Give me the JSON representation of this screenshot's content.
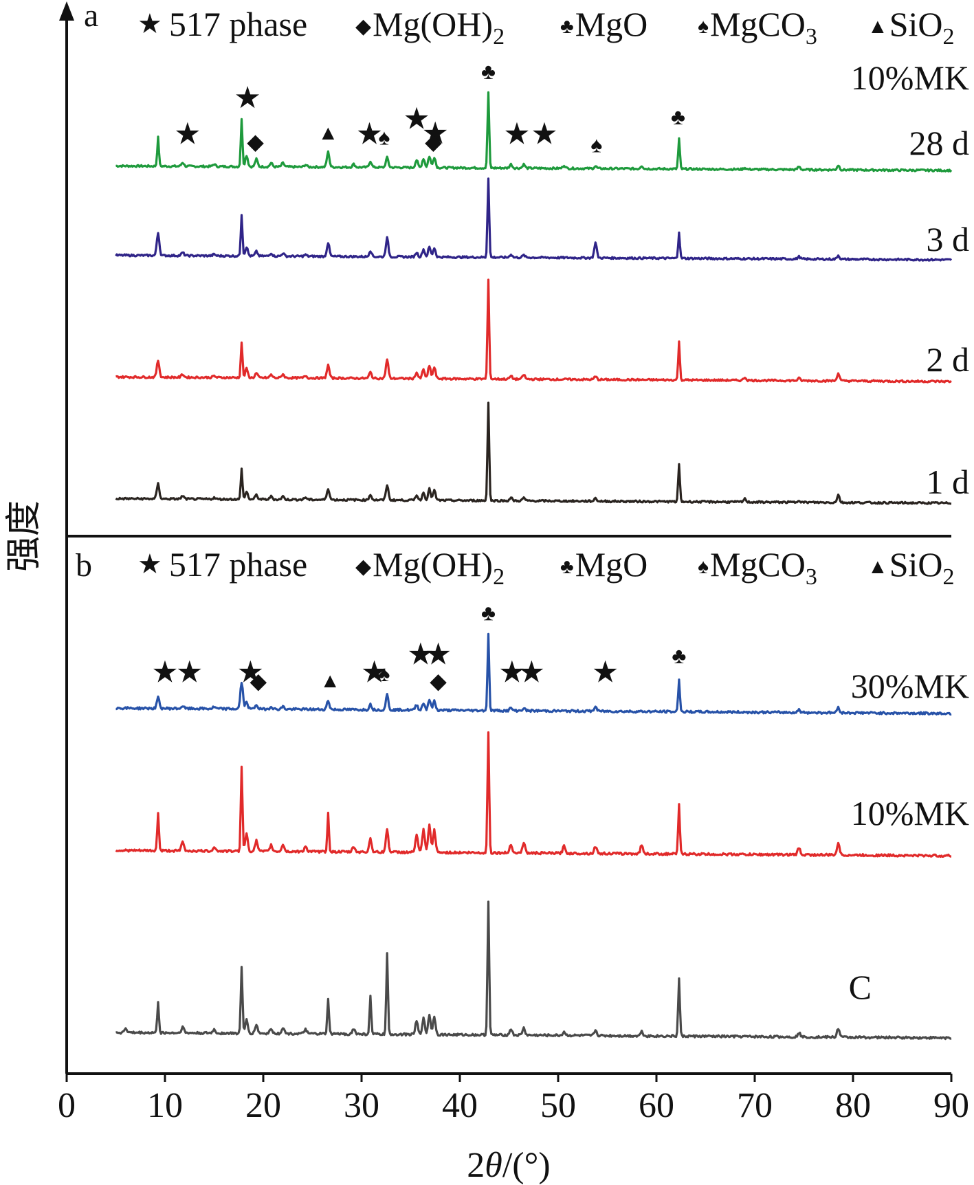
{
  "chart_data": {
    "type": "line",
    "x_axis": {
      "label_prefix": "2",
      "label_theta": "θ",
      "label_suffix": "/(°)",
      "min": 0,
      "max": 90,
      "ticks": [
        0,
        10,
        20,
        30,
        40,
        50,
        60,
        70,
        80,
        90
      ]
    },
    "y_axis": {
      "label": "强度"
    },
    "legend": [
      {
        "symbol": "★",
        "name": "517 phase"
      },
      {
        "symbol": "◆",
        "name": "Mg(OH)",
        "sub": "2"
      },
      {
        "symbol": "♣",
        "name": "MgO"
      },
      {
        "symbol": "♠",
        "name": "MgCO",
        "sub": "3"
      },
      {
        "symbol": "▲",
        "name": "SiO",
        "sub": "2"
      }
    ],
    "panels": [
      {
        "id": "a",
        "subtitle": "10%MK",
        "series": [
          {
            "name": "28 d",
            "color": "#1e9a3c",
            "offset": 6,
            "scale": 1.0,
            "peaks": [
              [
                9.3,
                0.38
              ],
              [
                11.8,
                0.05
              ],
              [
                15.0,
                0.03
              ],
              [
                17.8,
                0.62
              ],
              [
                18.3,
                0.15
              ],
              [
                19.3,
                0.1
              ],
              [
                20.8,
                0.05
              ],
              [
                22.0,
                0.05
              ],
              [
                24.3,
                0.03
              ],
              [
                26.6,
                0.2
              ],
              [
                29.2,
                0.04
              ],
              [
                30.9,
                0.08
              ],
              [
                32.6,
                0.13
              ],
              [
                35.6,
                0.1
              ],
              [
                36.3,
                0.12
              ],
              [
                36.9,
                0.15
              ],
              [
                37.4,
                0.14
              ],
              [
                42.9,
                1.0
              ],
              [
                45.2,
                0.05
              ],
              [
                46.5,
                0.05
              ],
              [
                50.6,
                0.04
              ],
              [
                53.8,
                0.03
              ],
              [
                58.5,
                0.04
              ],
              [
                62.3,
                0.4
              ],
              [
                69.0,
                0.02
              ],
              [
                74.5,
                0.04
              ],
              [
                78.5,
                0.06
              ]
            ],
            "markers": [
              [
                12.3,
                "★"
              ],
              [
                18.4,
                "★"
              ],
              [
                19.2,
                "◆"
              ],
              [
                26.6,
                "▲"
              ],
              [
                30.8,
                "★"
              ],
              [
                32.3,
                "♠"
              ],
              [
                35.6,
                "★"
              ],
              [
                37.5,
                "★"
              ],
              [
                37.3,
                "◆"
              ],
              [
                42.9,
                "♣"
              ],
              [
                45.8,
                "★"
              ],
              [
                48.6,
                "★"
              ],
              [
                53.9,
                "♠"
              ],
              [
                62.2,
                "♣"
              ]
            ]
          },
          {
            "name": "3 d",
            "color": "#2f2488",
            "offset": 4.5,
            "scale": 1.0,
            "peaks": [
              [
                9.3,
                0.3
              ],
              [
                11.8,
                0.04
              ],
              [
                15.0,
                0.02
              ],
              [
                17.8,
                0.55
              ],
              [
                18.3,
                0.12
              ],
              [
                19.3,
                0.06
              ],
              [
                20.8,
                0.04
              ],
              [
                22.0,
                0.04
              ],
              [
                24.3,
                0.02
              ],
              [
                26.6,
                0.18
              ],
              [
                30.9,
                0.08
              ],
              [
                32.6,
                0.25
              ],
              [
                35.6,
                0.06
              ],
              [
                36.3,
                0.1
              ],
              [
                36.9,
                0.13
              ],
              [
                37.4,
                0.12
              ],
              [
                42.9,
                1.05
              ],
              [
                45.2,
                0.04
              ],
              [
                46.5,
                0.03
              ],
              [
                53.8,
                0.2
              ],
              [
                62.3,
                0.35
              ],
              [
                74.5,
                0.03
              ],
              [
                78.5,
                0.05
              ]
            ],
            "markers": []
          },
          {
            "name": "2 d",
            "color": "#e12a2a",
            "offset": 2.9,
            "scale": 1.0,
            "peaks": [
              [
                9.3,
                0.22
              ],
              [
                11.8,
                0.04
              ],
              [
                15.0,
                0.02
              ],
              [
                17.8,
                0.47
              ],
              [
                18.3,
                0.12
              ],
              [
                19.3,
                0.06
              ],
              [
                20.8,
                0.04
              ],
              [
                22.0,
                0.05
              ],
              [
                24.3,
                0.03
              ],
              [
                26.6,
                0.17
              ],
              [
                30.9,
                0.08
              ],
              [
                32.6,
                0.25
              ],
              [
                35.6,
                0.08
              ],
              [
                36.3,
                0.12
              ],
              [
                36.9,
                0.17
              ],
              [
                37.4,
                0.15
              ],
              [
                42.9,
                1.3
              ],
              [
                45.2,
                0.04
              ],
              [
                46.5,
                0.06
              ],
              [
                53.8,
                0.04
              ],
              [
                62.3,
                0.5
              ],
              [
                69.0,
                0.04
              ],
              [
                74.5,
                0.03
              ],
              [
                78.5,
                0.1
              ]
            ],
            "markers": []
          },
          {
            "name": "1 d",
            "color": "#2a2420",
            "offset": 1.3,
            "scale": 1.0,
            "peaks": [
              [
                9.3,
                0.2
              ],
              [
                11.8,
                0.04
              ],
              [
                15.0,
                0.02
              ],
              [
                17.8,
                0.4
              ],
              [
                18.3,
                0.1
              ],
              [
                19.3,
                0.06
              ],
              [
                20.8,
                0.04
              ],
              [
                22.0,
                0.04
              ],
              [
                24.3,
                0.03
              ],
              [
                26.6,
                0.15
              ],
              [
                30.9,
                0.07
              ],
              [
                32.6,
                0.2
              ],
              [
                35.6,
                0.07
              ],
              [
                36.3,
                0.1
              ],
              [
                36.9,
                0.15
              ],
              [
                37.4,
                0.13
              ],
              [
                42.9,
                1.3
              ],
              [
                45.2,
                0.04
              ],
              [
                46.5,
                0.04
              ],
              [
                53.8,
                0.04
              ],
              [
                62.3,
                0.5
              ],
              [
                69.0,
                0.04
              ],
              [
                74.5,
                0.03
              ],
              [
                78.5,
                0.1
              ]
            ],
            "markers": []
          }
        ]
      },
      {
        "id": "b",
        "subtitle": "",
        "series": [
          {
            "name": "30%MK",
            "color": "#2752a8",
            "offset": 6,
            "scale": 1.0,
            "peaks": [
              [
                9.3,
                0.12
              ],
              [
                11.8,
                0.03
              ],
              [
                15.0,
                0.02
              ],
              [
                17.8,
                0.3
              ],
              [
                18.3,
                0.08
              ],
              [
                19.3,
                0.05
              ],
              [
                20.8,
                0.03
              ],
              [
                22.0,
                0.03
              ],
              [
                26.6,
                0.1
              ],
              [
                30.9,
                0.06
              ],
              [
                32.6,
                0.17
              ],
              [
                35.6,
                0.06
              ],
              [
                36.3,
                0.08
              ],
              [
                36.9,
                0.12
              ],
              [
                37.4,
                0.1
              ],
              [
                42.9,
                0.85
              ],
              [
                45.2,
                0.03
              ],
              [
                46.5,
                0.03
              ],
              [
                53.8,
                0.05
              ],
              [
                62.3,
                0.37
              ],
              [
                74.5,
                0.03
              ],
              [
                78.5,
                0.06
              ]
            ],
            "markers": [
              [
                10.0,
                "★"
              ],
              [
                12.5,
                "★"
              ],
              [
                18.7,
                "★"
              ],
              [
                19.5,
                "◆"
              ],
              [
                26.8,
                "▲"
              ],
              [
                31.3,
                "★"
              ],
              [
                32.3,
                "♠"
              ],
              [
                36.0,
                "★"
              ],
              [
                37.8,
                "★"
              ],
              [
                37.8,
                "◆"
              ],
              [
                42.9,
                "♣"
              ],
              [
                45.3,
                "★"
              ],
              [
                47.3,
                "★"
              ],
              [
                54.8,
                "★"
              ],
              [
                62.3,
                "♣"
              ]
            ]
          },
          {
            "name": "10%MK",
            "color": "#e12a2a",
            "offset": 4.2,
            "scale": 1.0,
            "peaks": [
              [
                9.3,
                0.43
              ],
              [
                11.8,
                0.1
              ],
              [
                15.0,
                0.05
              ],
              [
                17.8,
                0.95
              ],
              [
                18.3,
                0.2
              ],
              [
                19.3,
                0.12
              ],
              [
                20.8,
                0.07
              ],
              [
                22.0,
                0.08
              ],
              [
                24.3,
                0.06
              ],
              [
                26.6,
                0.43
              ],
              [
                29.2,
                0.06
              ],
              [
                30.9,
                0.15
              ],
              [
                32.6,
                0.25
              ],
              [
                35.6,
                0.2
              ],
              [
                36.3,
                0.25
              ],
              [
                36.9,
                0.3
              ],
              [
                37.4,
                0.25
              ],
              [
                42.9,
                1.35
              ],
              [
                45.2,
                0.1
              ],
              [
                46.5,
                0.12
              ],
              [
                50.6,
                0.08
              ],
              [
                53.8,
                0.08
              ],
              [
                58.5,
                0.1
              ],
              [
                62.3,
                0.55
              ],
              [
                74.5,
                0.08
              ],
              [
                78.5,
                0.14
              ]
            ],
            "markers": []
          },
          {
            "name": "C",
            "color": "#4a4a4a",
            "offset": 1.6,
            "scale": 1.0,
            "peaks": [
              [
                6.0,
                0.05
              ],
              [
                9.3,
                0.35
              ],
              [
                11.8,
                0.07
              ],
              [
                15.0,
                0.04
              ],
              [
                17.8,
                0.75
              ],
              [
                18.3,
                0.15
              ],
              [
                19.3,
                0.1
              ],
              [
                20.8,
                0.06
              ],
              [
                22.0,
                0.07
              ],
              [
                24.3,
                0.05
              ],
              [
                26.6,
                0.4
              ],
              [
                29.2,
                0.06
              ],
              [
                30.9,
                0.42
              ],
              [
                32.6,
                0.9
              ],
              [
                35.6,
                0.15
              ],
              [
                36.3,
                0.18
              ],
              [
                36.9,
                0.22
              ],
              [
                37.4,
                0.2
              ],
              [
                42.9,
                1.5
              ],
              [
                45.2,
                0.07
              ],
              [
                46.5,
                0.08
              ],
              [
                50.6,
                0.04
              ],
              [
                53.8,
                0.06
              ],
              [
                58.5,
                0.05
              ],
              [
                62.3,
                0.65
              ],
              [
                74.5,
                0.05
              ],
              [
                78.5,
                0.1
              ]
            ],
            "markers": []
          }
        ]
      }
    ]
  }
}
